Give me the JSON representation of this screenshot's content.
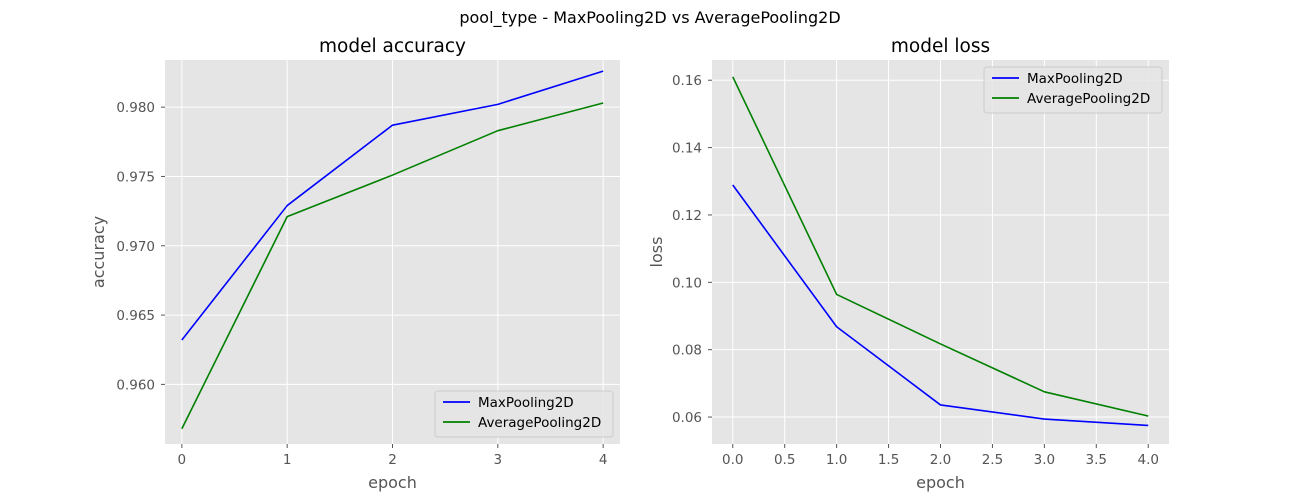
{
  "figure": {
    "suptitle": "pool_type - MaxPooling2D vs AveragePooling2D"
  },
  "colors": {
    "axes_bg": "#e5e5e5",
    "grid": "#ffffff",
    "tick_text": "#555555",
    "max_pooling": "#0000ff",
    "average_pooling": "#008000"
  },
  "chart_data": [
    {
      "type": "line",
      "title": "model accuracy",
      "xlabel": "epoch",
      "ylabel": "accuracy",
      "xlim": [
        -0.16,
        4.16
      ],
      "ylim": [
        0.9557,
        0.9834
      ],
      "xticks": [
        0,
        1,
        2,
        3,
        4
      ],
      "xtick_labels": [
        "0",
        "1",
        "2",
        "3",
        "4"
      ],
      "yticks": [
        0.96,
        0.965,
        0.97,
        0.975,
        0.98
      ],
      "ytick_labels": [
        "0.960",
        "0.965",
        "0.970",
        "0.975",
        "0.980"
      ],
      "grid": true,
      "legend_position": "lower-right",
      "x": [
        0,
        1,
        2,
        3,
        4
      ],
      "series": [
        {
          "name": "MaxPooling2D",
          "color": "#0000ff",
          "values": [
            0.9632,
            0.9729,
            0.9787,
            0.9802,
            0.9826
          ]
        },
        {
          "name": "AveragePooling2D",
          "color": "#008000",
          "values": [
            0.9568,
            0.9721,
            0.9751,
            0.9783,
            0.9803
          ]
        }
      ]
    },
    {
      "type": "line",
      "title": "model loss",
      "xlabel": "epoch",
      "ylabel": "loss",
      "xlim": [
        -0.2,
        4.2
      ],
      "ylim": [
        0.052,
        0.166
      ],
      "xticks": [
        0.0,
        0.5,
        1.0,
        1.5,
        2.0,
        2.5,
        3.0,
        3.5,
        4.0
      ],
      "xtick_labels": [
        "0.0",
        "0.5",
        "1.0",
        "1.5",
        "2.0",
        "2.5",
        "3.0",
        "3.5",
        "4.0"
      ],
      "yticks": [
        0.06,
        0.08,
        0.1,
        0.12,
        0.14,
        0.16
      ],
      "ytick_labels": [
        "0.06",
        "0.08",
        "0.10",
        "0.12",
        "0.14",
        "0.16"
      ],
      "grid": true,
      "legend_position": "upper-right",
      "x": [
        0,
        1,
        2,
        3,
        4
      ],
      "series": [
        {
          "name": "MaxPooling2D",
          "color": "#0000ff",
          "values": [
            0.1289,
            0.0868,
            0.0636,
            0.0594,
            0.0575
          ]
        },
        {
          "name": "AveragePooling2D",
          "color": "#008000",
          "values": [
            0.161,
            0.0964,
            0.0817,
            0.0675,
            0.0603
          ]
        }
      ]
    }
  ]
}
